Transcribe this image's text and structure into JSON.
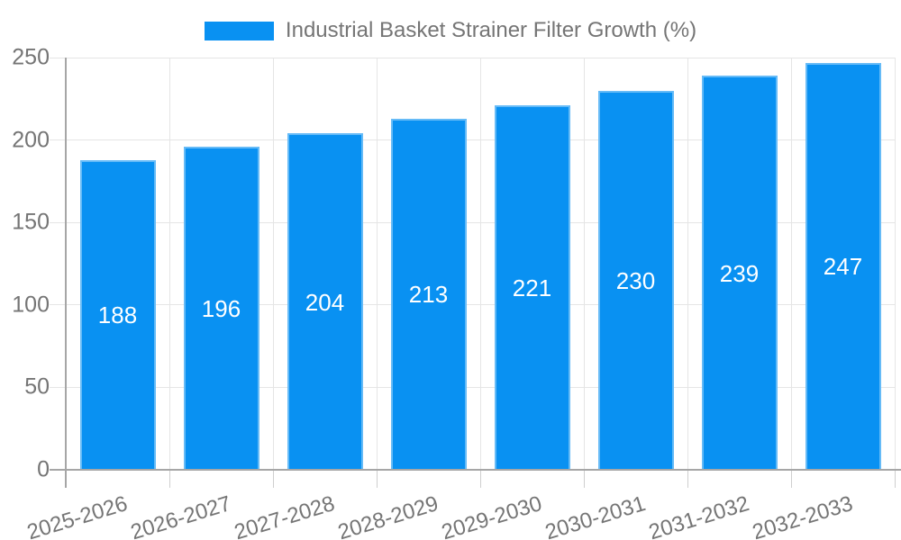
{
  "legend": {
    "label": "Industrial Basket Strainer Filter Growth (%)"
  },
  "colors": {
    "bar": "#0991F2",
    "bar_border": "rgba(255,255,255,0.38)",
    "grid": "#e5e5e5",
    "tick": "#cfcfcf",
    "axis": "#a6a6a6",
    "text": "#757575",
    "value_label": "#ffffff",
    "background": "#ffffff"
  },
  "chart_data": {
    "type": "bar",
    "title": "",
    "xlabel": "",
    "ylabel": "",
    "categories": [
      "2025-2026",
      "2026-2027",
      "2027-2028",
      "2028-2029",
      "2029-2030",
      "2030-2031",
      "2031-2032",
      "2032-2033"
    ],
    "series": [
      {
        "name": "Industrial Basket Strainer Filter Growth (%)",
        "values": [
          188,
          196,
          204,
          213,
          221,
          230,
          239,
          247
        ]
      }
    ],
    "ylim": [
      0,
      250
    ],
    "yticks": [
      0,
      50,
      100,
      150,
      200,
      250
    ],
    "grid": true,
    "legend_position": "top-center",
    "value_labels": "inside-center",
    "x_label_rotation_deg": -17
  }
}
